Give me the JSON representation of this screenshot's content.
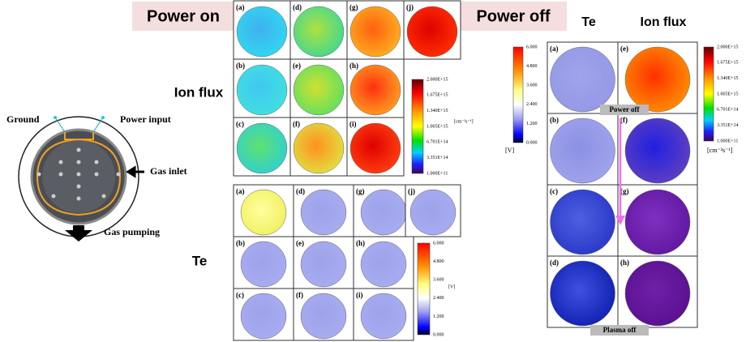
{
  "schematic": {
    "ground": "Ground",
    "power_input": "Power input",
    "gas_inlet": "Gas inlet",
    "gas_pumping": "Gas pumping"
  },
  "power_on": {
    "title": "Power on",
    "ion_flux": {
      "label": "Ion flux",
      "panels": [
        "(a)",
        "(b)",
        "(c)",
        "(d)",
        "(e)",
        "(f)",
        "(g)",
        "(h)",
        "(i)",
        "(j)"
      ],
      "colorbar": {
        "ticks": [
          "2.000E+15",
          "1.675E+15",
          "1.340E+15",
          "1.005E+15",
          "6.701E+14",
          "3.351E+14",
          "1.000E+11"
        ],
        "unit": "[cm⁻²s⁻¹]"
      }
    },
    "te": {
      "label": "Te",
      "panels": [
        "(a)",
        "(b)",
        "(c)",
        "(d)",
        "(e)",
        "(f)",
        "(g)",
        "(h)",
        "(i)",
        "(j)"
      ],
      "colorbar": {
        "ticks": [
          "6.000",
          "4.800",
          "3.600",
          "2.400",
          "1.200",
          "0.000"
        ],
        "unit": "[V]"
      }
    }
  },
  "power_off": {
    "title": "Power off",
    "te_label": "Te",
    "ion_flux_label": "Ion flux",
    "panels": [
      "(a)",
      "(b)",
      "(c)",
      "(d)",
      "(e)",
      "(f)",
      "(g)",
      "(h)"
    ],
    "te_colorbar": {
      "ticks": [
        "6.000",
        "4.800",
        "3.600",
        "2.400",
        "1.200",
        "0.000"
      ],
      "unit": "[V]"
    },
    "flux_colorbar": {
      "ticks": [
        "2.000E+15",
        "1.675E+15",
        "1.340E+15",
        "1.005E+15",
        "6.701E+14",
        "3.351E+14",
        "1.000E+11"
      ],
      "unit": "[cm⁻²s⁻¹]"
    },
    "power_off_note": "Power off",
    "plasma_off_note": "Plasma off"
  }
}
